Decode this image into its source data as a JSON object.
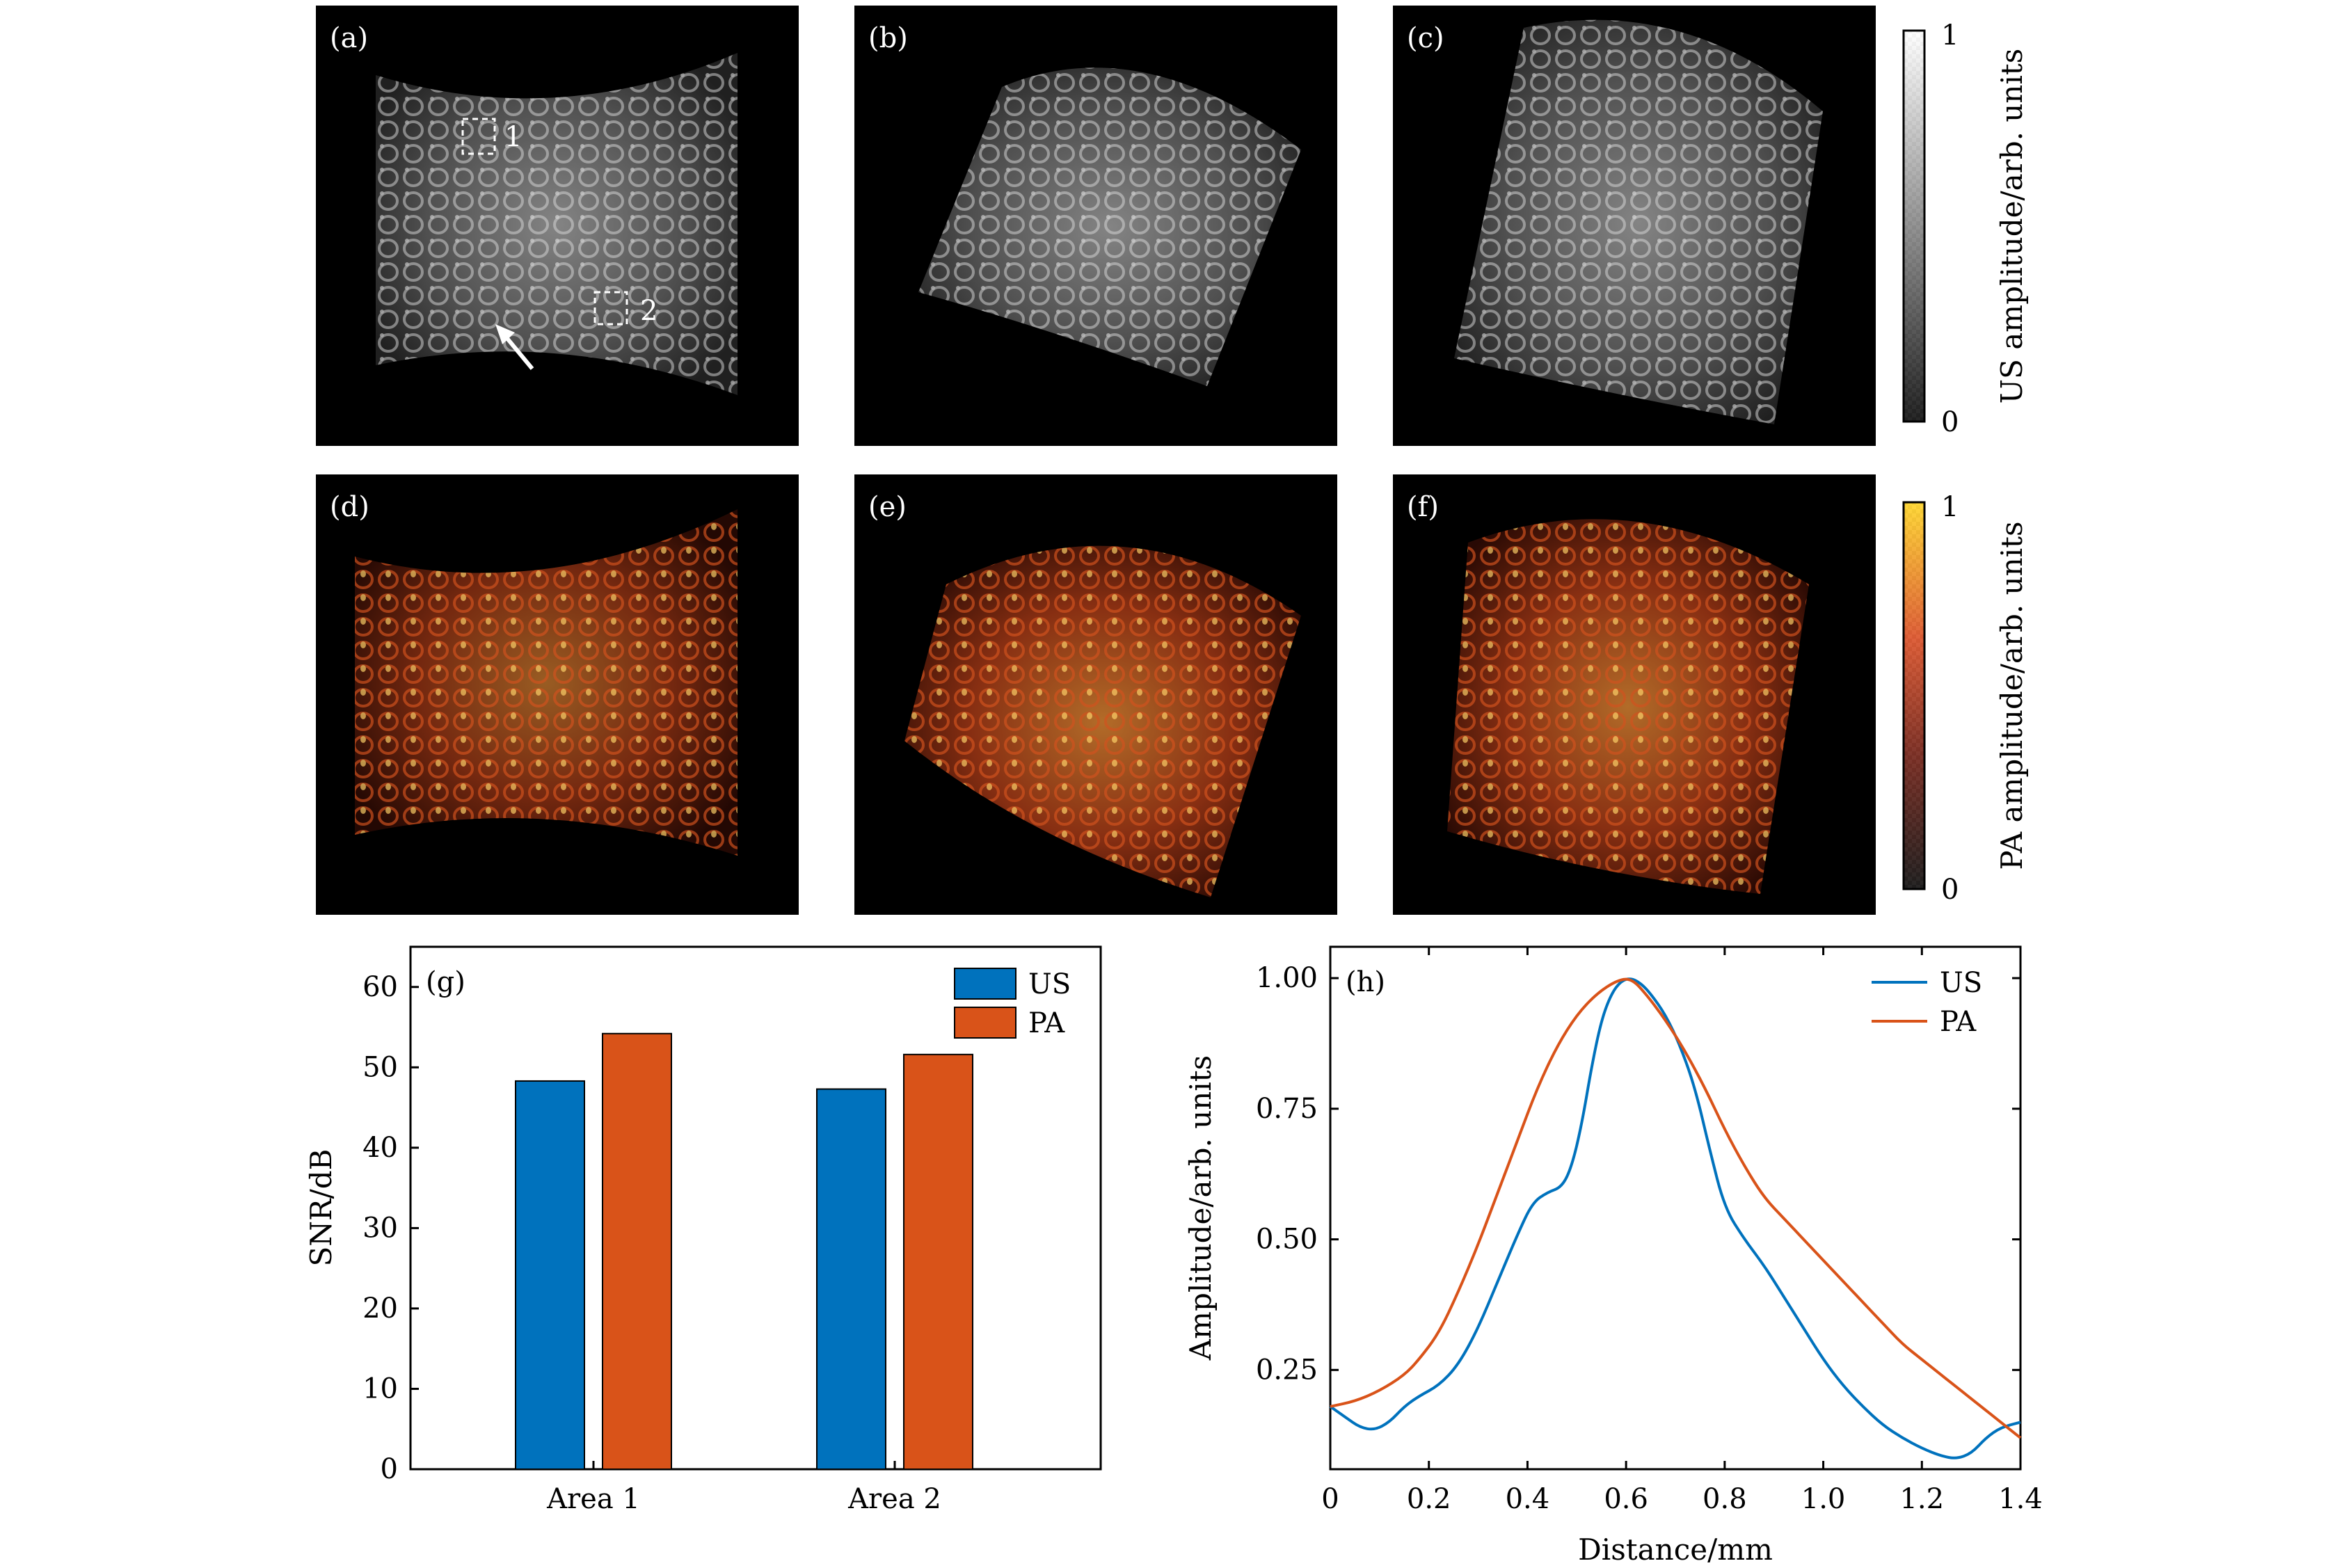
{
  "colors": {
    "us": "#0072bd",
    "pa": "#d95319",
    "image_bg": "#000000"
  },
  "image_panels": [
    {
      "label": "(a)",
      "modality": "US",
      "shape": "concave"
    },
    {
      "label": "(b)",
      "modality": "US",
      "shape": "tilted"
    },
    {
      "label": "(c)",
      "modality": "US",
      "shape": "cylinder"
    },
    {
      "label": "(d)",
      "modality": "PA",
      "shape": "concave"
    },
    {
      "label": "(e)",
      "modality": "PA",
      "shape": "tilted"
    },
    {
      "label": "(f)",
      "modality": "PA",
      "shape": "cylinder"
    }
  ],
  "roi_labels": [
    "1",
    "2"
  ],
  "colorbars": {
    "us": {
      "top": "1",
      "bottom": "0",
      "title": "US amplitude/arb. units"
    },
    "pa": {
      "top": "1",
      "bottom": "0",
      "title": "PA amplitude/arb. units"
    }
  },
  "chart_data": [
    {
      "type": "bar",
      "panel": "(g)",
      "categories": [
        "Area 1",
        "Area 2"
      ],
      "series": [
        {
          "name": "US",
          "values": [
            48.3,
            47.3
          ]
        },
        {
          "name": "PA",
          "values": [
            54.2,
            51.6
          ]
        }
      ],
      "ylabel": "SNR/dB",
      "ylim": [
        0,
        65
      ],
      "yticks": [
        "0",
        "10",
        "20",
        "30",
        "40",
        "50",
        "60"
      ],
      "legend": "top-right"
    },
    {
      "type": "line",
      "panel": "(h)",
      "xlabel": "Distance/mm",
      "ylabel": "Amplitude/arb. units",
      "xlim": [
        0,
        1.4
      ],
      "ylim": [
        0.06,
        1.06
      ],
      "xticks": [
        "0",
        "0.2",
        "0.4",
        "0.6",
        "0.8",
        "1.0",
        "1.2",
        "1.4"
      ],
      "yticks": [
        "0.25",
        "0.50",
        "0.75",
        "1.00"
      ],
      "legend": "top-right",
      "series": [
        {
          "name": "US",
          "x": [
            0,
            0.03,
            0.06,
            0.09,
            0.12,
            0.15,
            0.18,
            0.22,
            0.26,
            0.3,
            0.34,
            0.38,
            0.41,
            0.44,
            0.47,
            0.49,
            0.51,
            0.53,
            0.55,
            0.57,
            0.59,
            0.61,
            0.63,
            0.65,
            0.68,
            0.71,
            0.74,
            0.77,
            0.8,
            0.84,
            0.88,
            0.92,
            0.96,
            1.0,
            1.04,
            1.08,
            1.12,
            1.16,
            1.2,
            1.24,
            1.27,
            1.3,
            1.33,
            1.36,
            1.4
          ],
          "y": [
            0.18,
            0.16,
            0.14,
            0.135,
            0.15,
            0.18,
            0.2,
            0.22,
            0.26,
            0.33,
            0.42,
            0.51,
            0.57,
            0.59,
            0.6,
            0.64,
            0.72,
            0.83,
            0.92,
            0.97,
            0.995,
            1.0,
            0.99,
            0.97,
            0.93,
            0.87,
            0.79,
            0.67,
            0.56,
            0.5,
            0.45,
            0.39,
            0.33,
            0.27,
            0.22,
            0.18,
            0.145,
            0.12,
            0.1,
            0.085,
            0.08,
            0.09,
            0.12,
            0.14,
            0.15
          ]
        },
        {
          "name": "PA",
          "x": [
            0,
            0.05,
            0.1,
            0.15,
            0.18,
            0.22,
            0.26,
            0.3,
            0.34,
            0.38,
            0.42,
            0.46,
            0.5,
            0.54,
            0.58,
            0.61,
            0.64,
            0.68,
            0.72,
            0.76,
            0.8,
            0.84,
            0.88,
            0.92,
            0.96,
            1.0,
            1.04,
            1.08,
            1.12,
            1.16,
            1.2,
            1.24,
            1.28,
            1.32,
            1.36,
            1.4
          ],
          "y": [
            0.18,
            0.19,
            0.21,
            0.24,
            0.27,
            0.32,
            0.4,
            0.49,
            0.59,
            0.69,
            0.79,
            0.87,
            0.93,
            0.97,
            0.995,
            1.0,
            0.97,
            0.92,
            0.86,
            0.79,
            0.71,
            0.64,
            0.58,
            0.54,
            0.5,
            0.46,
            0.42,
            0.38,
            0.34,
            0.3,
            0.27,
            0.24,
            0.21,
            0.18,
            0.15,
            0.12
          ]
        }
      ]
    }
  ]
}
